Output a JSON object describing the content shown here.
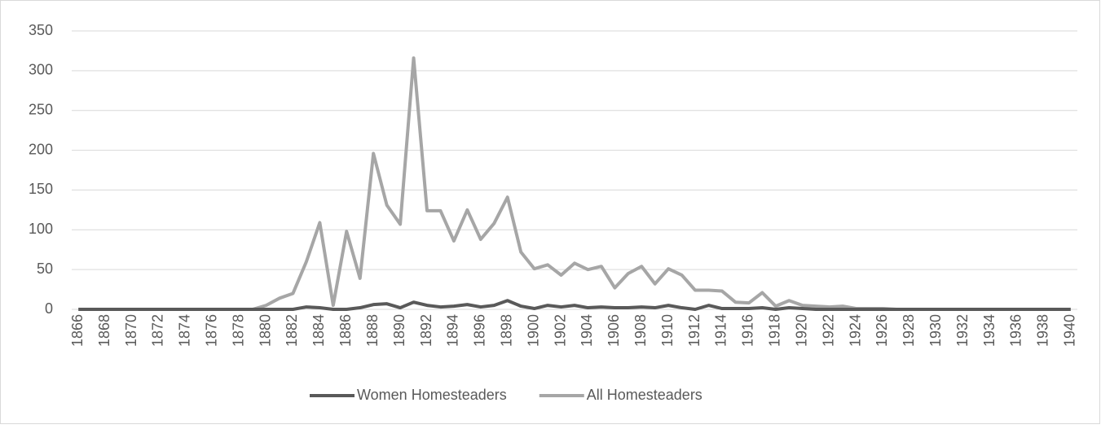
{
  "chart_data": {
    "type": "line",
    "categories": [
      "1866",
      null,
      "1868",
      null,
      "1870",
      null,
      "1872",
      null,
      "1874",
      null,
      "1876",
      null,
      "1878",
      null,
      "1880",
      null,
      "1882",
      null,
      "1884",
      null,
      "1886",
      null,
      "1888",
      null,
      "1890",
      null,
      "1892",
      null,
      "1894",
      null,
      "1896",
      null,
      "1898",
      null,
      "1900",
      null,
      "1902",
      null,
      "1904",
      null,
      "1906",
      null,
      "1908",
      null,
      "1910",
      null,
      "1912",
      null,
      "1914",
      null,
      "1916",
      null,
      "1918",
      null,
      "1920",
      null,
      "1922",
      null,
      "1924",
      null,
      "1926",
      null,
      "1928",
      null,
      "1930",
      null,
      "1932",
      null,
      "1934",
      null,
      "1936",
      null,
      "1938",
      null,
      "1940"
    ],
    "series": [
      {
        "name": "Women Homesteaders",
        "color": "#595959",
        "values": [
          0,
          0,
          0,
          0,
          0,
          0,
          0,
          0,
          0,
          0,
          0,
          0,
          0,
          0,
          0,
          0,
          0,
          3,
          2,
          0,
          0,
          2,
          6,
          7,
          2,
          9,
          5,
          3,
          4,
          6,
          3,
          5,
          11,
          4,
          1,
          5,
          3,
          5,
          2,
          3,
          2,
          2,
          3,
          2,
          5,
          2,
          0,
          5,
          1,
          1,
          1,
          2,
          0,
          2,
          1,
          0,
          0,
          0,
          0,
          0,
          0,
          0,
          0,
          0,
          0,
          0,
          0,
          0,
          0,
          0,
          0,
          0,
          0,
          0,
          0
        ]
      },
      {
        "name": "All Homesteaders",
        "color": "#a6a6a6",
        "values": [
          0,
          0,
          0,
          0,
          0,
          0,
          0,
          0,
          0,
          0,
          0,
          0,
          0,
          0,
          5,
          14,
          20,
          60,
          109,
          5,
          98,
          39,
          196,
          131,
          107,
          316,
          124,
          124,
          86,
          125,
          88,
          108,
          141,
          72,
          51,
          56,
          43,
          58,
          50,
          54,
          27,
          45,
          54,
          32,
          51,
          43,
          24,
          24,
          23,
          9,
          8,
          21,
          4,
          11,
          5,
          4,
          3,
          4,
          1,
          1,
          1,
          0,
          0,
          0,
          0,
          0,
          0,
          0,
          0,
          0,
          0,
          0,
          0,
          0,
          0
        ]
      }
    ],
    "ylim": [
      0,
      350
    ],
    "yticks": [
      0,
      50,
      100,
      150,
      200,
      250,
      300,
      350
    ],
    "grid": true,
    "legend": "bottom"
  }
}
